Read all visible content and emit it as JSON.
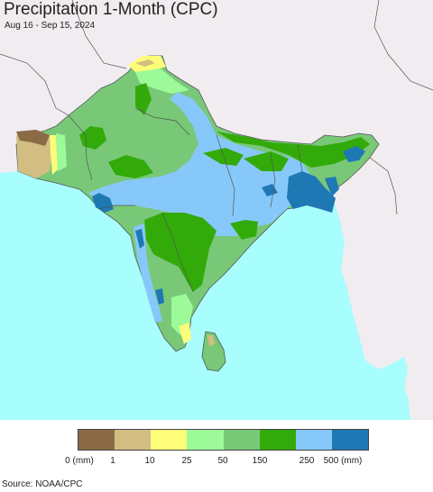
{
  "title": "Precipitation 1-Month (CPC)",
  "date_range": "Aug 16 - Sep 15, 2024",
  "legend": {
    "bins": [
      {
        "color": "#8b6b46"
      },
      {
        "color": "#d2bd82"
      },
      {
        "color": "#fdfd7a"
      },
      {
        "color": "#9cfa98"
      },
      {
        "color": "#78c878"
      },
      {
        "color": "#32aa0a"
      },
      {
        "color": "#87c8fa"
      },
      {
        "color": "#1e78b4"
      }
    ],
    "labels": [
      "0 (mm)",
      "1",
      "10",
      "25",
      "50",
      "150",
      "250",
      "500 (mm)"
    ]
  },
  "source": "Source: NOAA/CPC",
  "colors": {
    "ocean": "#a8fdfd",
    "land_outside": "#f0ecf0",
    "border": "#555555"
  }
}
